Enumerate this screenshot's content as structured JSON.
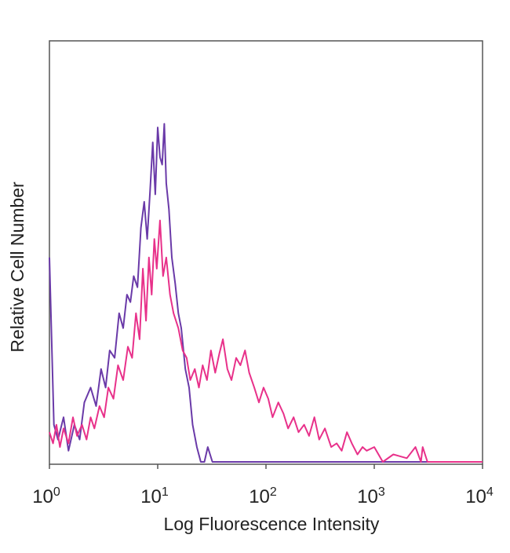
{
  "chart_data": {
    "type": "line",
    "title": "",
    "xlabel": "Log Fluorescence Intensity",
    "ylabel": "Relative Cell Number",
    "x_scale": "log",
    "xlim": [
      1,
      10000
    ],
    "ylim": [
      0,
      1
    ],
    "x_ticks": [
      {
        "value": 1,
        "base": "10",
        "exp": "0"
      },
      {
        "value": 10,
        "base": "10",
        "exp": "1"
      },
      {
        "value": 100,
        "base": "10",
        "exp": "2"
      },
      {
        "value": 1000,
        "base": "10",
        "exp": "3"
      },
      {
        "value": 10000,
        "base": "10",
        "exp": "4"
      }
    ],
    "legend": "none",
    "grid": false,
    "series": [
      {
        "color": "#6a3aa8",
        "x": [
          1.0,
          1.1,
          1.2,
          1.35,
          1.5,
          1.7,
          1.9,
          2.1,
          2.4,
          2.7,
          3.0,
          3.3,
          3.6,
          4.0,
          4.4,
          4.8,
          5.2,
          5.6,
          6.0,
          6.5,
          7.0,
          7.5,
          8.0,
          8.5,
          9.0,
          9.5,
          10.0,
          10.5,
          11.0,
          11.5,
          12.0,
          12.7,
          13.5,
          14.5,
          15.5,
          16.5,
          18.0,
          19.5,
          21.0,
          23.0,
          25.0,
          27.0,
          29.0,
          32.0,
          35.0,
          40.0,
          45.0,
          50.0,
          100.0,
          1000.0,
          10000.0
        ],
        "y": [
          0.55,
          0.1,
          0.06,
          0.12,
          0.03,
          0.1,
          0.06,
          0.16,
          0.2,
          0.15,
          0.25,
          0.2,
          0.3,
          0.28,
          0.4,
          0.36,
          0.45,
          0.43,
          0.5,
          0.47,
          0.63,
          0.7,
          0.6,
          0.73,
          0.86,
          0.72,
          0.9,
          0.82,
          0.8,
          0.91,
          0.75,
          0.68,
          0.55,
          0.48,
          0.4,
          0.36,
          0.25,
          0.2,
          0.1,
          0.04,
          0.0,
          0.0,
          0.04,
          0.0,
          0.0,
          0.0,
          0.0,
          0.0,
          0.0,
          0.0,
          0.0
        ]
      },
      {
        "color": "#e8318a",
        "x": [
          1.0,
          1.08,
          1.16,
          1.25,
          1.35,
          1.5,
          1.65,
          1.8,
          2.0,
          2.2,
          2.4,
          2.6,
          2.9,
          3.2,
          3.5,
          3.9,
          4.3,
          4.8,
          5.3,
          5.8,
          6.3,
          6.8,
          7.3,
          7.8,
          8.3,
          8.8,
          9.3,
          9.8,
          10.5,
          11.2,
          12.0,
          13.0,
          14.0,
          15.5,
          17.0,
          18.5,
          20.0,
          22.0,
          24.0,
          26.0,
          28.5,
          31.0,
          34.0,
          37.0,
          40.0,
          44.0,
          48.0,
          53.0,
          58.0,
          64.0,
          70.0,
          78.0,
          86.0,
          95.0,
          105.0,
          115.0,
          130.0,
          145.0,
          160.0,
          180.0,
          200.0,
          225.0,
          250.0,
          280.0,
          310.0,
          350.0,
          400.0,
          450.0,
          500.0,
          560.0,
          620.0,
          700.0,
          780.0,
          850.0,
          1000.0,
          1200.0,
          1500.0,
          2000.0,
          2400.0,
          2700.0,
          2800.0,
          3100.0,
          4000.0,
          6000.0,
          10000.0
        ],
        "y": [
          0.08,
          0.05,
          0.1,
          0.04,
          0.09,
          0.05,
          0.12,
          0.07,
          0.1,
          0.06,
          0.12,
          0.09,
          0.15,
          0.12,
          0.2,
          0.17,
          0.26,
          0.22,
          0.31,
          0.28,
          0.4,
          0.33,
          0.52,
          0.38,
          0.55,
          0.45,
          0.6,
          0.52,
          0.65,
          0.5,
          0.55,
          0.45,
          0.4,
          0.36,
          0.3,
          0.28,
          0.22,
          0.25,
          0.2,
          0.26,
          0.22,
          0.3,
          0.24,
          0.29,
          0.33,
          0.25,
          0.22,
          0.28,
          0.26,
          0.3,
          0.24,
          0.2,
          0.16,
          0.2,
          0.17,
          0.12,
          0.16,
          0.13,
          0.09,
          0.12,
          0.08,
          0.1,
          0.07,
          0.12,
          0.06,
          0.09,
          0.04,
          0.05,
          0.03,
          0.08,
          0.05,
          0.02,
          0.04,
          0.03,
          0.04,
          0.0,
          0.02,
          0.01,
          0.04,
          0.0,
          0.04,
          0.0,
          0.0,
          0.0,
          0.0
        ]
      }
    ]
  }
}
